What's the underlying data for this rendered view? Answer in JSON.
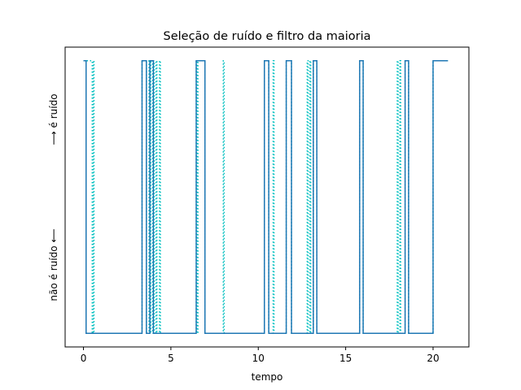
{
  "chart_data": {
    "type": "line",
    "title": "Seleção de ruído e filtro da maioria",
    "xlabel": "tempo",
    "ylabel_low": "não é ruído ⟵",
    "ylabel_high": "⟶ é ruído",
    "xlim": [
      -1.05,
      22.05
    ],
    "ylim": [
      -0.05,
      1.05
    ],
    "xticks": [
      0,
      5,
      10,
      15,
      20
    ],
    "xtick_labels": [
      "0",
      "5",
      "10",
      "15",
      "20"
    ],
    "grid": false,
    "series": [
      {
        "style": "dotted",
        "color": "#00bfbf",
        "steps": [
          [
            0.0,
            1
          ],
          [
            0.5,
            1
          ],
          [
            0.5,
            0
          ],
          [
            0.55,
            0
          ],
          [
            0.55,
            1
          ],
          [
            0.6,
            1
          ],
          [
            0.6,
            0
          ],
          [
            3.35,
            0
          ],
          [
            3.35,
            1
          ],
          [
            3.6,
            1
          ],
          [
            3.6,
            0
          ],
          [
            3.75,
            0
          ],
          [
            3.75,
            1
          ],
          [
            3.8,
            1
          ],
          [
            3.8,
            0
          ],
          [
            3.85,
            0
          ],
          [
            3.85,
            1
          ],
          [
            3.95,
            1
          ],
          [
            3.95,
            0
          ],
          [
            4.0,
            0
          ],
          [
            4.0,
            1
          ],
          [
            4.05,
            1
          ],
          [
            4.05,
            0
          ],
          [
            4.15,
            0
          ],
          [
            4.15,
            1
          ],
          [
            4.2,
            1
          ],
          [
            4.2,
            0
          ],
          [
            4.35,
            0
          ],
          [
            4.35,
            1
          ],
          [
            4.4,
            1
          ],
          [
            4.4,
            0
          ],
          [
            6.45,
            0
          ],
          [
            6.45,
            1
          ],
          [
            6.5,
            1
          ],
          [
            6.5,
            0
          ],
          [
            6.55,
            0
          ],
          [
            6.55,
            1
          ],
          [
            6.95,
            1
          ],
          [
            6.95,
            0
          ],
          [
            8.0,
            0
          ],
          [
            8.0,
            1
          ],
          [
            8.05,
            1
          ],
          [
            8.05,
            0
          ],
          [
            10.35,
            0
          ],
          [
            10.35,
            1
          ],
          [
            10.6,
            1
          ],
          [
            10.6,
            0
          ],
          [
            10.85,
            0
          ],
          [
            10.85,
            1
          ],
          [
            10.9,
            1
          ],
          [
            10.9,
            0
          ],
          [
            11.6,
            0
          ],
          [
            11.6,
            1
          ],
          [
            11.9,
            1
          ],
          [
            11.9,
            0
          ],
          [
            12.8,
            0
          ],
          [
            12.8,
            1
          ],
          [
            12.85,
            1
          ],
          [
            12.85,
            0
          ],
          [
            12.95,
            0
          ],
          [
            12.95,
            1
          ],
          [
            13.0,
            1
          ],
          [
            13.0,
            0
          ],
          [
            13.15,
            0
          ],
          [
            13.15,
            1
          ],
          [
            13.35,
            1
          ],
          [
            13.35,
            0
          ],
          [
            15.8,
            0
          ],
          [
            15.8,
            1
          ],
          [
            16.0,
            1
          ],
          [
            16.0,
            0
          ],
          [
            17.95,
            0
          ],
          [
            17.95,
            1
          ],
          [
            18.0,
            1
          ],
          [
            18.0,
            0
          ],
          [
            18.1,
            0
          ],
          [
            18.1,
            1
          ],
          [
            18.15,
            1
          ],
          [
            18.15,
            0
          ],
          [
            18.4,
            0
          ],
          [
            18.4,
            1
          ],
          [
            18.6,
            1
          ],
          [
            18.6,
            0
          ],
          [
            20.0,
            0
          ],
          [
            20.0,
            1
          ],
          [
            20.85,
            1
          ]
        ]
      },
      {
        "style": "solid",
        "color": "#1f77b4",
        "steps": [
          [
            0.0,
            1
          ],
          [
            0.15,
            1
          ],
          [
            0.15,
            0
          ],
          [
            3.35,
            0
          ],
          [
            3.35,
            1
          ],
          [
            3.6,
            1
          ],
          [
            3.6,
            0
          ],
          [
            3.8,
            0
          ],
          [
            3.8,
            1
          ],
          [
            4.0,
            1
          ],
          [
            4.0,
            0
          ],
          [
            6.45,
            0
          ],
          [
            6.45,
            1
          ],
          [
            6.95,
            1
          ],
          [
            6.95,
            0
          ],
          [
            10.35,
            0
          ],
          [
            10.35,
            1
          ],
          [
            10.6,
            1
          ],
          [
            10.6,
            0
          ],
          [
            11.6,
            0
          ],
          [
            11.6,
            1
          ],
          [
            11.9,
            1
          ],
          [
            11.9,
            0
          ],
          [
            13.15,
            0
          ],
          [
            13.15,
            1
          ],
          [
            13.35,
            1
          ],
          [
            13.35,
            0
          ],
          [
            15.8,
            0
          ],
          [
            15.8,
            1
          ],
          [
            16.0,
            1
          ],
          [
            16.0,
            0
          ],
          [
            18.4,
            0
          ],
          [
            18.4,
            1
          ],
          [
            18.6,
            1
          ],
          [
            18.6,
            0
          ],
          [
            20.0,
            0
          ],
          [
            20.0,
            1
          ],
          [
            20.85,
            1
          ]
        ]
      }
    ]
  }
}
